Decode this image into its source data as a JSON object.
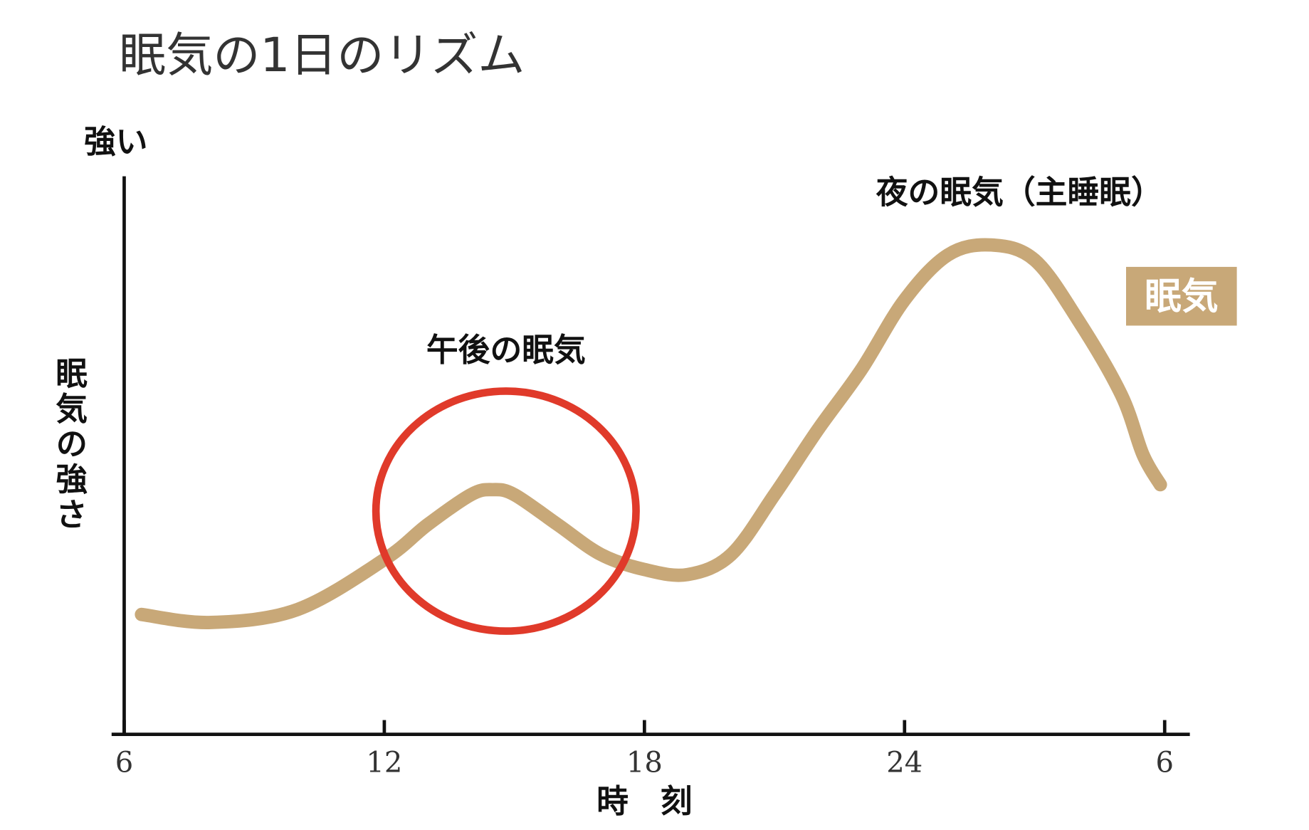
{
  "chart_data": {
    "type": "line",
    "title": "眠気の1日のリズム",
    "y_axis_top_label": "強い",
    "y_label": "眠気の強さ",
    "x_label": "時　刻",
    "annotations": [
      "午後の眠気",
      "夜の眠気（主睡眠）"
    ],
    "x": [
      6.4,
      8,
      10,
      12,
      13,
      14,
      14.5,
      15,
      16,
      17,
      18,
      19,
      20,
      21,
      22,
      23,
      24,
      25,
      26,
      27,
      28,
      29,
      29.5,
      29.9
    ],
    "series": [
      {
        "name": "眠気",
        "color": "#c8a878",
        "values": [
          24,
          22.4,
          25,
          35,
          42,
          48,
          49,
          48,
          42,
          36,
          33,
          32,
          36,
          48,
          61,
          73,
          87,
          96,
          98,
          95,
          83,
          68,
          56,
          50
        ]
      }
    ],
    "xlim": [
      6,
      30
    ],
    "xticks": [
      6,
      12,
      18,
      24,
      {
        "value": 30,
        "label": "6"
      }
    ],
    "ylim": [
      0,
      100
    ],
    "legend": "right"
  }
}
